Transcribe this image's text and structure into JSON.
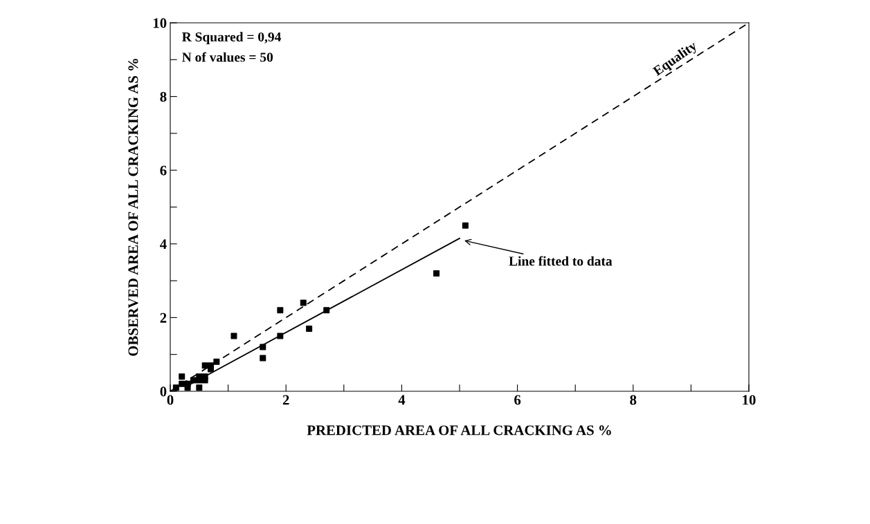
{
  "chart_data": {
    "type": "scatter",
    "xlabel": "PREDICTED AREA OF ALL CRACKING AS %",
    "ylabel": "OBSERVED AREA OF ALL CRACKING AS %",
    "xlim": [
      0,
      10
    ],
    "ylim": [
      0,
      10
    ],
    "xticks": [
      0,
      {
        "value": 1,
        "label": null
      },
      2,
      {
        "value": 3,
        "label": null
      },
      4,
      {
        "value": 5,
        "label": null
      },
      6,
      {
        "value": 7,
        "label": null
      },
      8,
      {
        "value": 9,
        "label": null
      },
      10
    ],
    "yticks": [
      0,
      {
        "value": 1,
        "label": null
      },
      2,
      {
        "value": 3,
        "label": null
      },
      4,
      {
        "value": 5,
        "label": null
      },
      6,
      {
        "value": 7,
        "label": null
      },
      8,
      {
        "value": 9,
        "label": null
      },
      10
    ],
    "grid": false,
    "legend": false,
    "series": [
      {
        "marker": "square",
        "color": "#000000",
        "x": [
          0.1,
          0.2,
          0.2,
          0.3,
          0.3,
          0.4,
          0.5,
          0.5,
          0.5,
          0.6,
          0.6,
          0.6,
          0.7,
          0.7,
          0.8,
          1.1,
          1.6,
          1.6,
          1.9,
          1.9,
          2.3,
          2.4,
          2.7,
          4.6,
          5.1
        ],
        "values": [
          0.1,
          0.4,
          0.2,
          0.2,
          0.1,
          0.3,
          0.4,
          0.3,
          0.1,
          0.7,
          0.4,
          0.3,
          0.7,
          0.6,
          0.8,
          1.5,
          1.2,
          0.9,
          2.2,
          1.5,
          2.4,
          1.7,
          2.2,
          3.2,
          4.5
        ]
      },
      {
        "type": "line",
        "line_style": "solid",
        "marker": "none",
        "color": "#000000",
        "x": [
          0.3,
          5.0
        ],
        "values": [
          0.15,
          4.15
        ]
      },
      {
        "type": "line",
        "line_style": "dashed",
        "marker": "none",
        "color": "#000000",
        "x": [
          0,
          10
        ],
        "values": [
          0,
          10
        ]
      }
    ],
    "annotations": [
      "R Squared = 0,94",
      "N of values = 50",
      {
        "text": "Equality",
        "x": 8.8,
        "y": 8.8
      },
      {
        "text": "Line fitted to data",
        "x": 5.05,
        "y": 4.1
      }
    ]
  }
}
